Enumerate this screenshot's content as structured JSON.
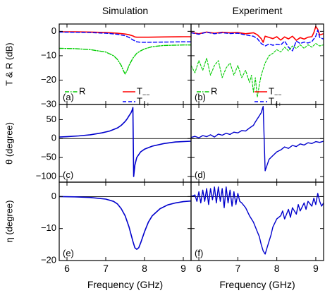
{
  "chart_data": {
    "type": "line",
    "columns": [
      "Simulation",
      "Experiment"
    ],
    "xlabel": "Frequency (GHz)",
    "xlim": [
      5.8,
      9.2
    ],
    "xticks": [
      6,
      7,
      8,
      9
    ],
    "rows": [
      {
        "ylabel": "T & R (dB)",
        "ylim": [
          -30,
          3
        ],
        "yticks": [
          0,
          -10,
          -20,
          -30
        ],
        "zero_line": false,
        "legend": [
          {
            "name": "R",
            "color": "#00cc00"
          },
          {
            "name": "T",
            "sub": "−−",
            "color": "#ff0000"
          },
          {
            "name": "T",
            "sub": "++",
            "color": "#0000ff"
          }
        ]
      },
      {
        "ylabel": "θ (degree)",
        "ylim": [
          -115,
          90
        ],
        "yticks": [
          50,
          0,
          -50,
          -100
        ],
        "zero_line": true
      },
      {
        "ylabel": "η (degree)",
        "ylim": [
          -20,
          4.5
        ],
        "yticks": [
          0,
          -10,
          -20
        ],
        "zero_line": true
      }
    ],
    "panels": [
      {
        "label": "(a)",
        "row": 0,
        "col": 0,
        "series": [
          {
            "name": "T−−",
            "color": "#ff0000",
            "width": 1.6,
            "dash": "",
            "x": [
              5.8,
              6.2,
              6.6,
              7.0,
              7.3,
              7.5,
              7.6,
              7.7,
              7.75,
              7.8,
              7.9,
              8.1,
              8.5,
              9.0,
              9.2
            ],
            "y": [
              -0.2,
              -0.2,
              -0.3,
              -0.5,
              -0.8,
              -1.1,
              -1.4,
              -1.9,
              -2.3,
              -2.4,
              -2.4,
              -2.4,
              -2.3,
              -2.2,
              -2.2
            ]
          },
          {
            "name": "T++",
            "color": "#0000ff",
            "width": 1.4,
            "dash": "5,3",
            "x": [
              5.8,
              6.2,
              6.6,
              7.0,
              7.3,
              7.5,
              7.6,
              7.7,
              7.8,
              7.9,
              8.1,
              8.5,
              9.0,
              9.2
            ],
            "y": [
              -0.3,
              -0.4,
              -0.5,
              -0.8,
              -1.2,
              -1.8,
              -2.5,
              -3.5,
              -4.3,
              -4.5,
              -4.5,
              -4.4,
              -4.3,
              -4.3
            ]
          },
          {
            "name": "R",
            "color": "#00cc00",
            "width": 1.4,
            "dash": "6,2,1.5,2",
            "x": [
              5.8,
              6.2,
              6.6,
              7.0,
              7.2,
              7.3,
              7.4,
              7.45,
              7.5,
              7.55,
              7.6,
              7.7,
              7.8,
              7.9,
              8.0,
              8.2,
              8.5,
              9.0,
              9.2
            ],
            "y": [
              -7.0,
              -7.1,
              -7.5,
              -8.5,
              -10.0,
              -11.5,
              -14.0,
              -16.0,
              -17.5,
              -16.0,
              -14.0,
              -11.0,
              -9.0,
              -8.0,
              -7.2,
              -6.3,
              -5.8,
              -5.6,
              -5.6
            ]
          }
        ]
      },
      {
        "label": "(b)",
        "row": 0,
        "col": 1,
        "series": [
          {
            "name": "T−−",
            "color": "#ff0000",
            "width": 1.6,
            "dash": "",
            "x": [
              5.8,
              6.0,
              6.2,
              6.4,
              6.6,
              6.8,
              7.0,
              7.2,
              7.4,
              7.5,
              7.6,
              7.65,
              7.7,
              7.8,
              7.9,
              8.0,
              8.1,
              8.2,
              8.3,
              8.4,
              8.5,
              8.6,
              8.7,
              8.8,
              8.9,
              8.95,
              9.0,
              9.05,
              9.1,
              9.2
            ],
            "y": [
              -0.5,
              -1.0,
              -0.3,
              -0.8,
              -0.4,
              -0.6,
              -0.5,
              -1.0,
              -0.6,
              -1.4,
              -3.0,
              -4.5,
              -2.0,
              -2.5,
              -3.0,
              -2.2,
              -3.6,
              -2.3,
              -3.1,
              -2.0,
              -3.7,
              -2.6,
              -3.2,
              -2.4,
              -2.2,
              -0.5,
              2.0,
              0.8,
              -1.5,
              -1.0
            ]
          },
          {
            "name": "T++",
            "color": "#0000ff",
            "width": 1.4,
            "dash": "5,3",
            "x": [
              5.8,
              6.0,
              6.2,
              6.4,
              6.6,
              6.8,
              7.0,
              7.2,
              7.4,
              7.5,
              7.6,
              7.7,
              7.8,
              7.9,
              8.0,
              8.1,
              8.2,
              8.3,
              8.4,
              8.5,
              8.6,
              8.7,
              8.8,
              8.9,
              9.0,
              9.05,
              9.1,
              9.2
            ],
            "y": [
              -0.6,
              -1.2,
              -0.4,
              -1.0,
              -0.6,
              -0.9,
              -0.8,
              -1.5,
              -2.0,
              -3.0,
              -5.0,
              -6.0,
              -5.2,
              -5.7,
              -5.3,
              -5.6,
              -4.0,
              -6.5,
              -8.0,
              -4.0,
              -5.0,
              -4.4,
              -4.8,
              -4.2,
              -2.0,
              0.5,
              -2.5,
              -3.2
            ]
          },
          {
            "name": "R",
            "color": "#00cc00",
            "width": 1.1,
            "dash": "3,2",
            "x": [
              5.8,
              5.9,
              6.0,
              6.1,
              6.2,
              6.3,
              6.4,
              6.5,
              6.6,
              6.7,
              6.8,
              6.9,
              7.0,
              7.1,
              7.2,
              7.3,
              7.35,
              7.4,
              7.45,
              7.5,
              7.55,
              7.6,
              7.7,
              7.8,
              7.9,
              8.0,
              8.1,
              8.2,
              8.3,
              8.4,
              8.5,
              8.6,
              8.7,
              8.8,
              8.9,
              9.0,
              9.1,
              9.2
            ],
            "y": [
              -14,
              -17,
              -12,
              -16,
              -11,
              -18,
              -14,
              -12,
              -19,
              -15,
              -13,
              -18,
              -14,
              -19,
              -16,
              -21,
              -18,
              -25,
              -19,
              -27,
              -22,
              -18,
              -13,
              -10,
              -9,
              -7.5,
              -8.5,
              -6.5,
              -8,
              -6,
              -7,
              -5.5,
              -7,
              -5.5,
              -6.5,
              -5,
              -6,
              -5.5
            ]
          }
        ]
      },
      {
        "label": "(c)",
        "row": 1,
        "col": 0,
        "series": [
          {
            "name": "θ",
            "color": "#0000cc",
            "width": 1.6,
            "dash": "",
            "x": [
              5.8,
              6.0,
              6.3,
              6.6,
              6.9,
              7.1,
              7.3,
              7.4,
              7.5,
              7.55,
              7.6,
              7.65,
              7.68,
              7.7,
              7.72,
              7.75,
              7.8,
              7.9,
              8.0,
              8.2,
              8.5,
              8.8,
              9.2
            ],
            "y": [
              4,
              5,
              7,
              10,
              15,
              20,
              28,
              35,
              45,
              52,
              60,
              68,
              75,
              82,
              -100,
              -70,
              -50,
              -35,
              -28,
              -20,
              -13,
              -9,
              -7
            ]
          }
        ]
      },
      {
        "label": "(d)",
        "row": 1,
        "col": 1,
        "series": [
          {
            "name": "θ",
            "color": "#0000cc",
            "width": 1.4,
            "dash": "",
            "x": [
              5.8,
              5.9,
              6.0,
              6.1,
              6.2,
              6.3,
              6.4,
              6.5,
              6.6,
              6.7,
              6.8,
              6.9,
              7.0,
              7.1,
              7.2,
              7.3,
              7.4,
              7.45,
              7.5,
              7.55,
              7.6,
              7.62,
              7.65,
              7.7,
              7.8,
              7.9,
              8.0,
              8.1,
              8.2,
              8.3,
              8.4,
              8.5,
              8.6,
              8.7,
              8.8,
              8.9,
              9.0,
              9.1,
              9.2
            ],
            "y": [
              3,
              6,
              2,
              8,
              5,
              10,
              4,
              12,
              9,
              14,
              11,
              17,
              15,
              21,
              20,
              28,
              35,
              44,
              52,
              60,
              68,
              75,
              85,
              -85,
              -55,
              -45,
              -35,
              -30,
              -22,
              -26,
              -18,
              -21,
              -14,
              -17,
              -11,
              -13,
              -8,
              -10,
              -7
            ]
          }
        ]
      },
      {
        "label": "(e)",
        "row": 2,
        "col": 0,
        "series": [
          {
            "name": "η",
            "color": "#0000cc",
            "width": 1.6,
            "dash": "",
            "x": [
              5.8,
              6.2,
              6.6,
              7.0,
              7.2,
              7.3,
              7.4,
              7.5,
              7.6,
              7.7,
              7.75,
              7.8,
              7.85,
              7.9,
              8.0,
              8.1,
              8.2,
              8.4,
              8.6,
              8.8,
              9.0,
              9.2
            ],
            "y": [
              0,
              -0.1,
              -0.3,
              -0.8,
              -1.5,
              -2.3,
              -3.8,
              -6.0,
              -9.5,
              -14.0,
              -16.0,
              -16.5,
              -16.0,
              -14.5,
              -11.0,
              -8.0,
              -6.0,
              -3.8,
              -2.6,
              -2.0,
              -1.6,
              -1.4
            ]
          }
        ]
      },
      {
        "label": "(f)",
        "row": 2,
        "col": 1,
        "series": [
          {
            "name": "η",
            "color": "#0000cc",
            "width": 1.4,
            "dash": "",
            "x": [
              5.8,
              5.9,
              5.95,
              6.0,
              6.05,
              6.1,
              6.15,
              6.2,
              6.25,
              6.3,
              6.35,
              6.4,
              6.45,
              6.5,
              6.55,
              6.6,
              6.65,
              6.7,
              6.75,
              6.8,
              6.85,
              6.9,
              6.95,
              7.0,
              7.05,
              7.1,
              7.2,
              7.3,
              7.4,
              7.5,
              7.55,
              7.6,
              7.65,
              7.7,
              7.75,
              7.8,
              7.85,
              7.9,
              8.0,
              8.1,
              8.15,
              8.2,
              8.3,
              8.35,
              8.4,
              8.5,
              8.55,
              8.6,
              8.7,
              8.75,
              8.8,
              8.9,
              8.95,
              9.0,
              9.05,
              9.1,
              9.15,
              9.2
            ],
            "y": [
              0,
              0.5,
              -1.5,
              1.5,
              -2.0,
              2.0,
              -1.5,
              2.5,
              -2.5,
              2.5,
              -1.0,
              3.0,
              -2.0,
              3.0,
              -1.5,
              2.5,
              -3.5,
              3.0,
              -2.0,
              2.0,
              -3.0,
              1.5,
              -2.5,
              1.0,
              -1.5,
              -2.0,
              -3.5,
              -6.0,
              -8.0,
              -11.0,
              -12.5,
              -15.0,
              -17.0,
              -18.0,
              -16.0,
              -14.0,
              -12.0,
              -9.5,
              -7.0,
              -6.0,
              -4.5,
              -7.0,
              -4.0,
              -6.5,
              -3.5,
              -5.5,
              -2.5,
              -4.5,
              -2.0,
              -4.0,
              -1.5,
              -3.0,
              -0.5,
              -2.5,
              1.0,
              -1.5,
              -3.0,
              -2.0
            ]
          }
        ]
      }
    ]
  }
}
